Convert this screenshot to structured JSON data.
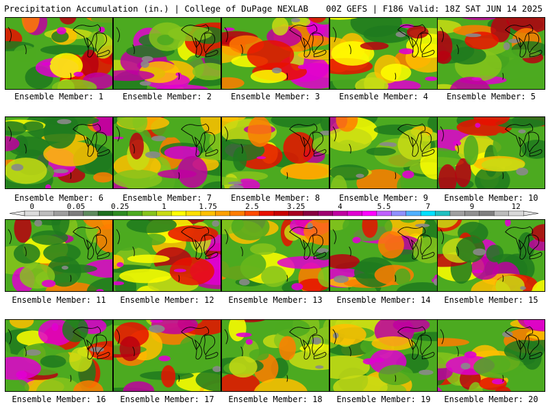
{
  "header": {
    "left": "Precipitation Accumulation (in.) | College of DuPage NEXLAB",
    "right": "00Z GEFS | F186 Valid: 18Z SAT JUN 14 2025"
  },
  "legend": {
    "tick_labels": [
      "0",
      "0.05",
      "0.25",
      "1",
      "1.75",
      "2.5",
      "3.25",
      "4",
      "5.5",
      "7",
      "9",
      "12"
    ],
    "colors": [
      "#dcdcdc",
      "#bdbdbd",
      "#9e9e9e",
      "#7d7d7d",
      "#5e8a5e",
      "#1e6e1e",
      "#2e8b22",
      "#4caa20",
      "#86c41c",
      "#c8dc14",
      "#ffff00",
      "#ffe000",
      "#ffc000",
      "#ffa000",
      "#ff7c00",
      "#ff4a00",
      "#e81000",
      "#c80000",
      "#a80020",
      "#880040",
      "#a00070",
      "#c000a0",
      "#e000d0",
      "#ff00ff",
      "#c060ff",
      "#9090ff",
      "#50b0ff",
      "#00e0ff",
      "#20c0c0",
      "#a0a0a0",
      "#909090",
      "#808080",
      "#bcbcbc",
      "#d8d8d8"
    ]
  },
  "panels": [
    {
      "label": "Ensemble Member: 1",
      "seed": 11
    },
    {
      "label": "Ensemble Member: 2",
      "seed": 23
    },
    {
      "label": "Ensemble Member: 3",
      "seed": 37
    },
    {
      "label": "Ensemble Member: 4",
      "seed": 41
    },
    {
      "label": "Ensemble Member: 5",
      "seed": 53
    },
    {
      "label": "Ensemble Member: 6",
      "seed": 67
    },
    {
      "label": "Ensemble Member: 7",
      "seed": 71
    },
    {
      "label": "Ensemble Member: 8",
      "seed": 83
    },
    {
      "label": "Ensemble Member: 9",
      "seed": 97
    },
    {
      "label": "Ensemble Member: 10",
      "seed": 101
    },
    {
      "label": "Ensemble Member: 11",
      "seed": 113
    },
    {
      "label": "Ensemble Member: 12",
      "seed": 127
    },
    {
      "label": "Ensemble Member: 13",
      "seed": 131
    },
    {
      "label": "Ensemble Member: 14",
      "seed": 149
    },
    {
      "label": "Ensemble Member: 15",
      "seed": 157
    },
    {
      "label": "Ensemble Member: 16",
      "seed": 163
    },
    {
      "label": "Ensemble Member: 17",
      "seed": 173
    },
    {
      "label": "Ensemble Member: 18",
      "seed": 181
    },
    {
      "label": "Ensemble Member: 19",
      "seed": 191
    },
    {
      "label": "Ensemble Member: 20",
      "seed": 199
    }
  ],
  "field_colors": [
    "#1e7a1e",
    "#4caa20",
    "#86c41c",
    "#c8dc14",
    "#ffff00",
    "#ffc000",
    "#ff7c00",
    "#e81000",
    "#b80010",
    "#c000a0",
    "#e000d0"
  ]
}
